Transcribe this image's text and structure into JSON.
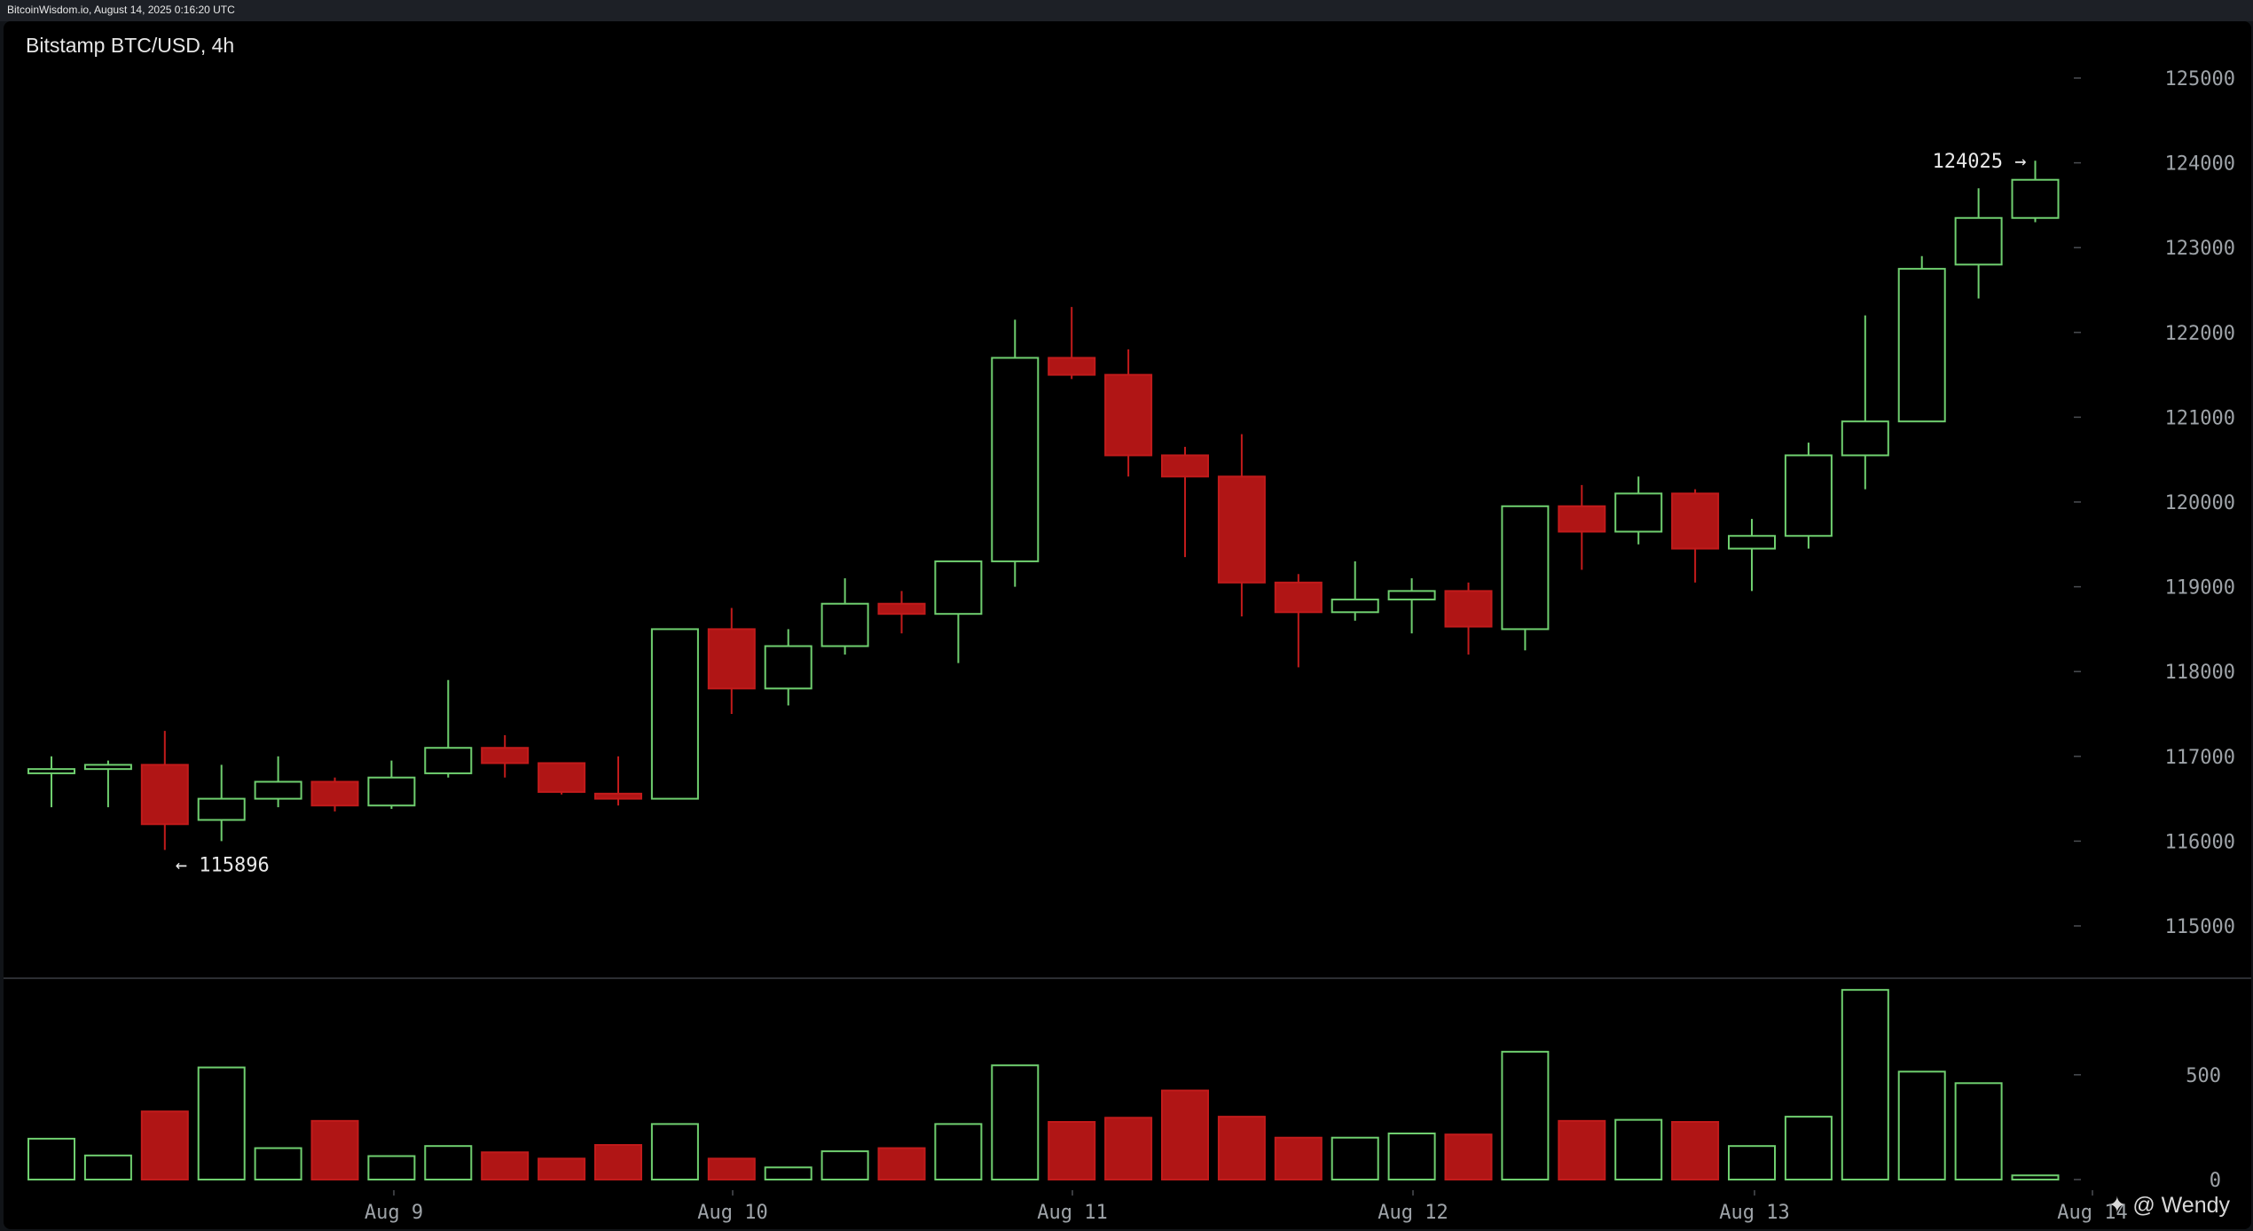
{
  "header": {
    "source_text": "BitcoinWisdom.io, August 14, 2025 0:16:20 UTC"
  },
  "watermark": "✦ @ Wendy",
  "colors": {
    "up": "#6fcf6f",
    "down": "#b01515",
    "down_stroke": "#c21b1b",
    "background": "#000000",
    "axis_text": "#9ea3a8"
  },
  "chart_data": {
    "type": "candlestick",
    "title": "Bitstamp BTC/USD, 4h",
    "interval": "4h",
    "y_ticks": [
      125000,
      124000,
      123000,
      122000,
      121000,
      120000,
      119000,
      118000,
      117000,
      116000,
      115000
    ],
    "volume_ticks": [
      500,
      0
    ],
    "x_tick_labels": [
      "Aug 9",
      "Aug 10",
      "Aug 11",
      "Aug 12",
      "Aug 13",
      "Aug 14"
    ],
    "candles": [
      {
        "o": 116800,
        "h": 117000,
        "l": 116400,
        "c": 116850,
        "v": 195
      },
      {
        "o": 116850,
        "h": 116950,
        "l": 116400,
        "c": 116900,
        "v": 115
      },
      {
        "o": 116900,
        "h": 117300,
        "l": 115896,
        "c": 116200,
        "v": 325
      },
      {
        "o": 116250,
        "h": 116900,
        "l": 116000,
        "c": 116500,
        "v": 535
      },
      {
        "o": 116500,
        "h": 117000,
        "l": 116400,
        "c": 116700,
        "v": 150
      },
      {
        "o": 116700,
        "h": 116750,
        "l": 116350,
        "c": 116420,
        "v": 280
      },
      {
        "o": 116420,
        "h": 116950,
        "l": 116380,
        "c": 116750,
        "v": 112
      },
      {
        "o": 116800,
        "h": 117900,
        "l": 116750,
        "c": 117100,
        "v": 160
      },
      {
        "o": 117100,
        "h": 117250,
        "l": 116750,
        "c": 116920,
        "v": 130
      },
      {
        "o": 116920,
        "h": 116930,
        "l": 116550,
        "c": 116580,
        "v": 100
      },
      {
        "o": 116560,
        "h": 117000,
        "l": 116420,
        "c": 116500,
        "v": 165
      },
      {
        "o": 116500,
        "h": 118500,
        "l": 116500,
        "c": 118500,
        "v": 265
      },
      {
        "o": 118500,
        "h": 118750,
        "l": 117500,
        "c": 117800,
        "v": 100
      },
      {
        "o": 117800,
        "h": 118500,
        "l": 117600,
        "c": 118300,
        "v": 58
      },
      {
        "o": 118300,
        "h": 119100,
        "l": 118200,
        "c": 118800,
        "v": 135
      },
      {
        "o": 118800,
        "h": 118950,
        "l": 118450,
        "c": 118680,
        "v": 150
      },
      {
        "o": 118680,
        "h": 119300,
        "l": 118100,
        "c": 119300,
        "v": 265
      },
      {
        "o": 119300,
        "h": 122150,
        "l": 119000,
        "c": 121700,
        "v": 545
      },
      {
        "o": 121700,
        "h": 122300,
        "l": 121450,
        "c": 121500,
        "v": 275
      },
      {
        "o": 121500,
        "h": 121800,
        "l": 120300,
        "c": 120550,
        "v": 295
      },
      {
        "o": 120550,
        "h": 120650,
        "l": 119350,
        "c": 120300,
        "v": 425
      },
      {
        "o": 120300,
        "h": 120800,
        "l": 118650,
        "c": 119050,
        "v": 300
      },
      {
        "o": 119050,
        "h": 119150,
        "l": 118050,
        "c": 118700,
        "v": 200
      },
      {
        "o": 118700,
        "h": 119300,
        "l": 118600,
        "c": 118850,
        "v": 200
      },
      {
        "o": 118850,
        "h": 119100,
        "l": 118450,
        "c": 118950,
        "v": 220
      },
      {
        "o": 118950,
        "h": 119050,
        "l": 118200,
        "c": 118530,
        "v": 215
      },
      {
        "o": 118500,
        "h": 119950,
        "l": 118250,
        "c": 119950,
        "v": 610
      },
      {
        "o": 119950,
        "h": 120200,
        "l": 119200,
        "c": 119650,
        "v": 280
      },
      {
        "o": 119650,
        "h": 120300,
        "l": 119500,
        "c": 120100,
        "v": 285
      },
      {
        "o": 120100,
        "h": 120150,
        "l": 119050,
        "c": 119450,
        "v": 275
      },
      {
        "o": 119450,
        "h": 119800,
        "l": 118950,
        "c": 119600,
        "v": 160
      },
      {
        "o": 119600,
        "h": 120700,
        "l": 119450,
        "c": 120550,
        "v": 300
      },
      {
        "o": 120550,
        "h": 122200,
        "l": 120150,
        "c": 120950,
        "v": 905
      },
      {
        "o": 120950,
        "h": 122900,
        "l": 120950,
        "c": 122750,
        "v": 515
      },
      {
        "o": 122800,
        "h": 123700,
        "l": 122400,
        "c": 123350,
        "v": 460
      },
      {
        "o": 123350,
        "h": 124025,
        "l": 123300,
        "c": 123800,
        "v": 20
      }
    ],
    "annotations": {
      "high": {
        "label": "124025 →",
        "value": 124025
      },
      "low": {
        "label": "← 115896",
        "value": 115896
      }
    }
  }
}
